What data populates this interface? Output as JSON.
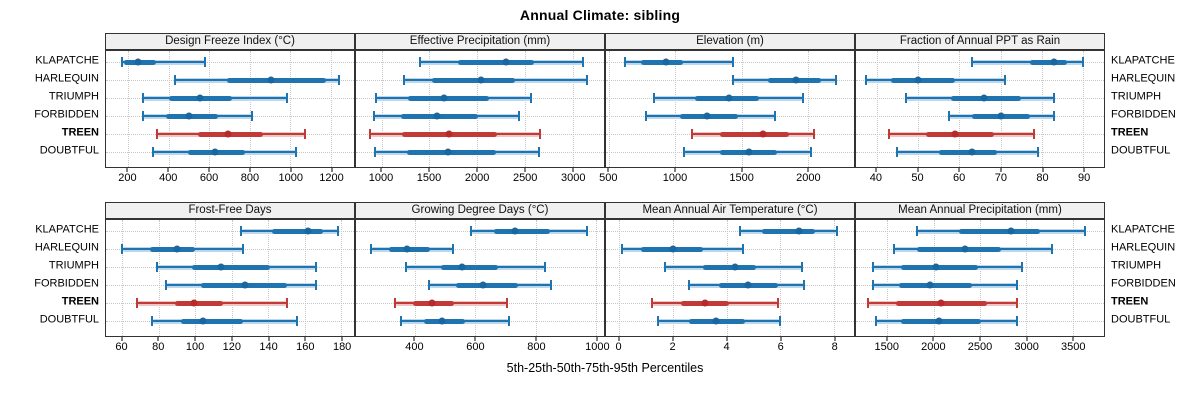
{
  "title": "Annual Climate: sibling",
  "x_axis_title": "5th-25th-50th-75th-95th Percentiles",
  "sites": [
    "KLAPATCHE",
    "HARLEQUIN",
    "TRIUMPH",
    "FORBIDDEN",
    "TREEN",
    "DOUBTFUL"
  ],
  "highlighted_site": "TREEN",
  "colors": {
    "series_blue": "#1F74B0",
    "series_blue_light": "#BCD7EC",
    "series_blue_dot": "#19679E",
    "highlight_red": "#C23A38",
    "highlight_red_light": "#ECC6C4",
    "highlight_red_dot": "#B52B2B",
    "strip_bg": "#F0F0F0",
    "panel_border": "#333333",
    "grid": "#C7C7C7"
  },
  "chart_data": {
    "type": "interval-dot-plot",
    "layout": {
      "rows": 2,
      "cols": 4,
      "grid": "dotted"
    },
    "percentiles_shown": [
      5,
      25,
      50,
      75,
      95
    ],
    "legend": "none",
    "panels": [
      {
        "title": "Design Freeze Index (°C)",
        "xlim": [
          90,
          1315
        ],
        "ticks": [
          200,
          400,
          600,
          800,
          1000,
          1200
        ],
        "series": [
          {
            "name": "KLAPATCHE",
            "values": [
              170,
              180,
              250,
              335,
              580
            ]
          },
          {
            "name": "HARLEQUIN",
            "values": [
              430,
              690,
              905,
              1175,
              1240
            ]
          },
          {
            "name": "TRIUMPH",
            "values": [
              275,
              400,
              555,
              710,
              985
            ]
          },
          {
            "name": "FORBIDDEN",
            "values": [
              275,
              385,
              500,
              645,
              810
            ]
          },
          {
            "name": "TREEN",
            "values": [
              340,
              545,
              695,
              865,
              1075
            ]
          },
          {
            "name": "DOUBTFUL",
            "values": [
              320,
              495,
              630,
              775,
              1030
            ]
          }
        ]
      },
      {
        "title": "Effective Precipitation (mm)",
        "xlim": [
          730,
          3330
        ],
        "ticks": [
          1000,
          1500,
          2000,
          2500,
          3000
        ],
        "series": [
          {
            "name": "KLAPATCHE",
            "values": [
              1405,
              1800,
              2300,
              2600,
              3110
            ]
          },
          {
            "name": "HARLEQUIN",
            "values": [
              1235,
              1525,
              2045,
              2395,
              3155
            ]
          },
          {
            "name": "TRIUMPH",
            "values": [
              935,
              1280,
              1650,
              2125,
              2565
            ]
          },
          {
            "name": "FORBIDDEN",
            "values": [
              915,
              1200,
              1580,
              2010,
              2440
            ]
          },
          {
            "name": "TREEN",
            "values": [
              875,
              1210,
              1705,
              2210,
              2660
            ]
          },
          {
            "name": "DOUBTFUL",
            "values": [
              925,
              1265,
              1695,
              2200,
              2645
            ]
          }
        ]
      },
      {
        "title": "Elevation (m)",
        "xlim": [
          475,
          2350
        ],
        "ticks": [
          500,
          1000,
          1500,
          2000
        ],
        "series": [
          {
            "name": "KLAPATCHE",
            "values": [
              620,
              740,
              925,
              1060,
              1435
            ]
          },
          {
            "name": "HARLEQUIN",
            "values": [
              1435,
              1700,
              1915,
              2100,
              2215
            ]
          },
          {
            "name": "TRIUMPH",
            "values": [
              835,
              1150,
              1405,
              1630,
              1965
            ]
          },
          {
            "name": "FORBIDDEN",
            "values": [
              775,
              1035,
              1240,
              1475,
              1750
            ]
          },
          {
            "name": "TREEN",
            "values": [
              1125,
              1335,
              1660,
              1860,
              2050
            ]
          },
          {
            "name": "DOUBTFUL",
            "values": [
              1065,
              1335,
              1555,
              1765,
              2025
            ]
          }
        ]
      },
      {
        "title": "Fraction of Annual PPT as Rain",
        "xlim": [
          35,
          95
        ],
        "ticks": [
          40,
          50,
          60,
          70,
          80,
          90
        ],
        "series": [
          {
            "name": "KLAPATCHE",
            "values": [
              63,
              77,
              83,
              86,
              90
            ]
          },
          {
            "name": "HARLEQUIN",
            "values": [
              37.5,
              43.5,
              50,
              59,
              71
            ]
          },
          {
            "name": "TRIUMPH",
            "values": [
              47,
              58,
              66,
              75,
              83
            ]
          },
          {
            "name": "FORBIDDEN",
            "values": [
              57.5,
              63,
              70,
              77,
              83
            ]
          },
          {
            "name": "TREEN",
            "values": [
              43,
              52,
              59,
              68.5,
              78
            ]
          },
          {
            "name": "DOUBTFUL",
            "values": [
              45,
              55,
              63,
              69,
              79
            ]
          }
        ]
      },
      {
        "title": "Frost-Free Days",
        "xlim": [
          51,
          187
        ],
        "ticks": [
          60,
          80,
          100,
          120,
          140,
          160,
          180
        ],
        "series": [
          {
            "name": "KLAPATCHE",
            "values": [
              125,
              142,
              162,
              170,
              178
            ]
          },
          {
            "name": "HARLEQUIN",
            "values": [
              60,
              75,
              90,
              100,
              126
            ]
          },
          {
            "name": "TRIUMPH",
            "values": [
              79,
              98,
              114,
              141,
              166
            ]
          },
          {
            "name": "FORBIDDEN",
            "values": [
              84,
              103,
              127,
              150,
              166
            ]
          },
          {
            "name": "TREEN",
            "values": [
              68,
              89,
              99,
              115,
              150
            ]
          },
          {
            "name": "DOUBTFUL",
            "values": [
              76,
              92,
              104,
              126,
              156
            ]
          }
        ]
      },
      {
        "title": "Growing Degree Days (°C)",
        "xlim": [
          205,
          1025
        ],
        "ticks": [
          400,
          600,
          800,
          1000
        ],
        "series": [
          {
            "name": "KLAPATCHE",
            "values": [
              585,
              660,
              730,
              845,
              970
            ]
          },
          {
            "name": "HARLEQUIN",
            "values": [
              255,
              315,
              375,
              450,
              525
            ]
          },
          {
            "name": "TRIUMPH",
            "values": [
              370,
              485,
              555,
              675,
              830
            ]
          },
          {
            "name": "FORBIDDEN",
            "values": [
              445,
              535,
              625,
              740,
              850
            ]
          },
          {
            "name": "TREEN",
            "values": [
              335,
              395,
              455,
              530,
              705
            ]
          },
          {
            "name": "DOUBTFUL",
            "values": [
              355,
              430,
              490,
              565,
              710
            ]
          }
        ]
      },
      {
        "title": "Mean Annual Air Temperature (°C)",
        "xlim": [
          -0.5,
          8.75
        ],
        "ticks": [
          0,
          2,
          4,
          6,
          8
        ],
        "series": [
          {
            "name": "KLAPATCHE",
            "values": [
              4.5,
              5.3,
              6.7,
              7.3,
              8.1
            ]
          },
          {
            "name": "HARLEQUIN",
            "values": [
              0.1,
              0.8,
              2.0,
              3.1,
              4.6
            ]
          },
          {
            "name": "TRIUMPH",
            "values": [
              1.7,
              3.1,
              4.3,
              5.1,
              6.8
            ]
          },
          {
            "name": "FORBIDDEN",
            "values": [
              2.6,
              3.7,
              4.8,
              5.9,
              6.9
            ]
          },
          {
            "name": "TREEN",
            "values": [
              1.2,
              2.3,
              3.2,
              4.1,
              5.9
            ]
          },
          {
            "name": "DOUBTFUL",
            "values": [
              1.45,
              2.6,
              3.6,
              4.7,
              6.0
            ]
          }
        ]
      },
      {
        "title": "Mean Annual Precipitation (mm)",
        "xlim": [
          1160,
          3840
        ],
        "ticks": [
          1500,
          2000,
          2500,
          3000,
          3500
        ],
        "series": [
          {
            "name": "KLAPATCHE",
            "values": [
              1820,
              2270,
              2840,
              3150,
              3640
            ]
          },
          {
            "name": "HARLEQUIN",
            "values": [
              1570,
              1820,
              2340,
              2730,
              3280
            ]
          },
          {
            "name": "TRIUMPH",
            "values": [
              1340,
              1645,
              2020,
              2480,
              2950
            ]
          },
          {
            "name": "FORBIDDEN",
            "values": [
              1345,
              1625,
              1955,
              2410,
              2900
            ]
          },
          {
            "name": "TREEN",
            "values": [
              1285,
              1590,
              2080,
              2580,
              2895
            ]
          },
          {
            "name": "DOUBTFUL",
            "values": [
              1375,
              1645,
              2055,
              2510,
              2895
            ]
          }
        ]
      }
    ]
  }
}
